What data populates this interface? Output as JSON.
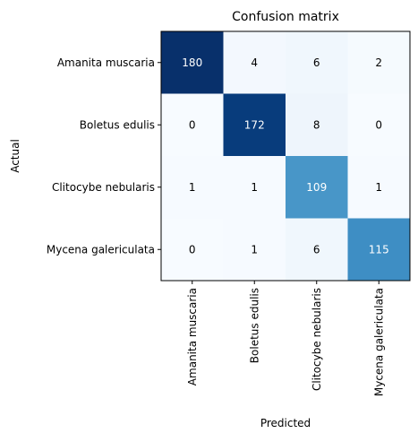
{
  "chart_data": {
    "type": "heatmap",
    "title": "Confusion matrix",
    "xlabel": "Predicted",
    "ylabel": "Actual",
    "x_categories": [
      "Amanita muscaria",
      "Boletus edulis",
      "Clitocybe nebularis",
      "Mycena galericulata"
    ],
    "y_categories": [
      "Amanita muscaria",
      "Boletus edulis",
      "Clitocybe nebularis",
      "Mycena galericulata"
    ],
    "values": [
      [
        180,
        4,
        6,
        2
      ],
      [
        0,
        172,
        8,
        0
      ],
      [
        1,
        1,
        109,
        1
      ],
      [
        0,
        1,
        6,
        115
      ]
    ],
    "colormap": "Blues",
    "value_range": [
      0,
      180
    ],
    "grid": false
  }
}
